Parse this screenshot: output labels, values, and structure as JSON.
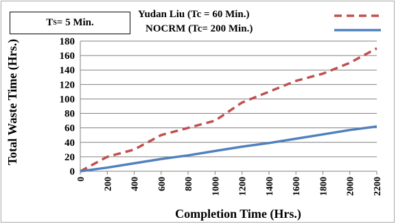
{
  "chart_data": {
    "type": "line",
    "annotation": {
      "label_main": "T",
      "label_sub": "S",
      "label_rest": " = 5 Min."
    },
    "xlabel": "Completion Time (Hrs.)",
    "ylabel": "Total Waste Time (Hrs.)",
    "xlim": [
      0,
      2200
    ],
    "ylim": [
      0,
      180
    ],
    "x_ticks": [
      0,
      200,
      400,
      600,
      800,
      1000,
      1200,
      1400,
      1600,
      1800,
      2000,
      2200
    ],
    "y_ticks": [
      0,
      20,
      40,
      60,
      80,
      100,
      120,
      140,
      160,
      180
    ],
    "grid": "horizontal",
    "legend_position": "top-right",
    "series": [
      {
        "name": "Yudan Liu  (Tc = 60 Min.)",
        "color": "#c0504d",
        "style": "dashed",
        "x": [
          0,
          200,
          400,
          600,
          800,
          1000,
          1200,
          1400,
          1600,
          1800,
          2000,
          2200
        ],
        "y": [
          0,
          20,
          30,
          50,
          60,
          70,
          95,
          110,
          125,
          135,
          150,
          170
        ]
      },
      {
        "name": "NOCRM  (Tc= 200 Min.)",
        "color": "#4f81bd",
        "style": "solid",
        "x": [
          0,
          200,
          400,
          600,
          800,
          1000,
          1200,
          1400,
          1600,
          1800,
          2000,
          2200
        ],
        "y": [
          0,
          5,
          11,
          17,
          22,
          28,
          34,
          39,
          45,
          51,
          57,
          62
        ]
      }
    ]
  }
}
